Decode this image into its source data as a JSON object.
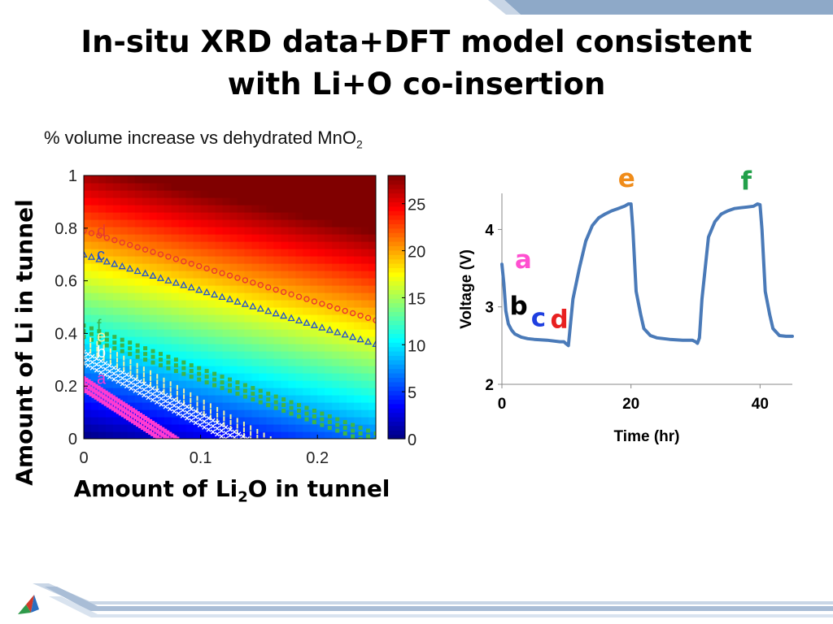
{
  "slide": {
    "title_line1": "In-situ XRD data+DFT model consistent",
    "title_line2": "with Li+O co-insertion",
    "colors": {
      "top_bar": "#8ea9c8",
      "deco": "#a9bdd6",
      "logo": [
        "#2f9a4a",
        "#d13a2a",
        "#2a6fc0"
      ]
    }
  },
  "chart_data": [
    {
      "type": "heatmap",
      "title": "% volume increase vs dehydrated MnO",
      "title_subscript": "2",
      "xlabel": "Amount of Li",
      "xlabel_subscript": "2",
      "xlabel_suffix": "O in tunnel",
      "ylabel": "Amount of Li in tunnel",
      "xlim": [
        0,
        0.25
      ],
      "ylim": [
        0,
        1
      ],
      "x_ticks": [
        "0",
        "0.1",
        "0.2"
      ],
      "x_tick_values": [
        0,
        0.1,
        0.2
      ],
      "y_ticks": [
        "0",
        "0.2",
        "0.4",
        "0.6",
        "0.8",
        "1"
      ],
      "y_tick_values": [
        0,
        0.2,
        0.4,
        0.6,
        0.8,
        1
      ],
      "colorbar": {
        "range": [
          0,
          28
        ],
        "ticks": [
          "0",
          "5",
          "10",
          "15",
          "20",
          "25"
        ],
        "tick_values": [
          0,
          5,
          10,
          15,
          20,
          25
        ]
      },
      "value_model": {
        "description": "volume increase grows with Li and Li2O",
        "v_at_origin": 0,
        "dv_dli": 27,
        "dv_dli2o": 27
      },
      "series": [
        {
          "name": "d",
          "color": "#e8382e",
          "marker": "circle",
          "start": [
            0,
            0.79
          ],
          "end": [
            0.25,
            0.45
          ]
        },
        {
          "name": "c",
          "color": "#1f4fd0",
          "marker": "triangle",
          "start": [
            0,
            0.7
          ],
          "end": [
            0.25,
            0.36
          ]
        },
        {
          "name": "f",
          "color": "#3cb54a",
          "marker": "square",
          "start": [
            0,
            0.43
          ],
          "end": [
            0.25,
            0.02
          ]
        },
        {
          "name": "e",
          "color": "#f2f2a0",
          "marker": "bar",
          "start": [
            0,
            0.39
          ],
          "end": [
            0.16,
            0.0
          ]
        },
        {
          "name": "b",
          "color": "#ffffff",
          "marker": "x",
          "start": [
            0,
            0.33
          ],
          "end": [
            0.14,
            0.0
          ]
        },
        {
          "name": "a",
          "color": "#ff3bd3",
          "marker": "square",
          "start": [
            0,
            0.23
          ],
          "end": [
            0.08,
            0.0
          ]
        }
      ]
    },
    {
      "type": "line",
      "xlabel": "Time (hr)",
      "ylabel": "Voltage (V)",
      "xlim": [
        0,
        45
      ],
      "ylim": [
        2,
        4.55
      ],
      "x_ticks": [
        "0",
        "20",
        "40"
      ],
      "x_tick_values": [
        0,
        20,
        40
      ],
      "y_ticks": [
        "2",
        "3",
        "4"
      ],
      "y_tick_values": [
        2,
        3,
        4
      ],
      "color": "#4a7ab8",
      "x": [
        0,
        0.3,
        0.6,
        1,
        1.5,
        2,
        3,
        4,
        5,
        7,
        9,
        9.6,
        10,
        10.3,
        11,
        12,
        13,
        14,
        15,
        16,
        17,
        18,
        19,
        19.6,
        20,
        20.3,
        20.8,
        21.5,
        22,
        23,
        24,
        26,
        28,
        29.5,
        30,
        30.3,
        30.6,
        31,
        31.5,
        32,
        33,
        34,
        35,
        36,
        37,
        38,
        39,
        39.6,
        40,
        40.3,
        40.8,
        41.5,
        42,
        43,
        44,
        45
      ],
      "y": [
        3.55,
        3.3,
        2.95,
        2.78,
        2.7,
        2.65,
        2.61,
        2.59,
        2.58,
        2.57,
        2.55,
        2.55,
        2.52,
        2.5,
        3.1,
        3.5,
        3.85,
        4.05,
        4.15,
        4.2,
        4.24,
        4.27,
        4.3,
        4.33,
        4.33,
        4.0,
        3.2,
        2.9,
        2.72,
        2.63,
        2.6,
        2.58,
        2.57,
        2.57,
        2.55,
        2.53,
        2.6,
        3.1,
        3.5,
        3.9,
        4.1,
        4.2,
        4.24,
        4.27,
        4.28,
        4.29,
        4.3,
        4.33,
        4.32,
        4.0,
        3.2,
        2.9,
        2.72,
        2.63,
        2.62,
        2.62
      ],
      "annotations": [
        {
          "text": "a",
          "x": 2,
          "y": 3.5,
          "color": "#ff4fd0"
        },
        {
          "text": "b",
          "x": 1.2,
          "y": 2.9,
          "color": "#000000"
        },
        {
          "text": "c",
          "x": 4.5,
          "y": 2.75,
          "color": "#1f3fe0"
        },
        {
          "text": "d",
          "x": 7.5,
          "y": 2.73,
          "color": "#e82020"
        },
        {
          "text": "e",
          "x": 18,
          "y": 4.55,
          "color": "#f08c1a"
        },
        {
          "text": "f",
          "x": 37,
          "y": 4.52,
          "color": "#22a04a"
        }
      ]
    }
  ]
}
